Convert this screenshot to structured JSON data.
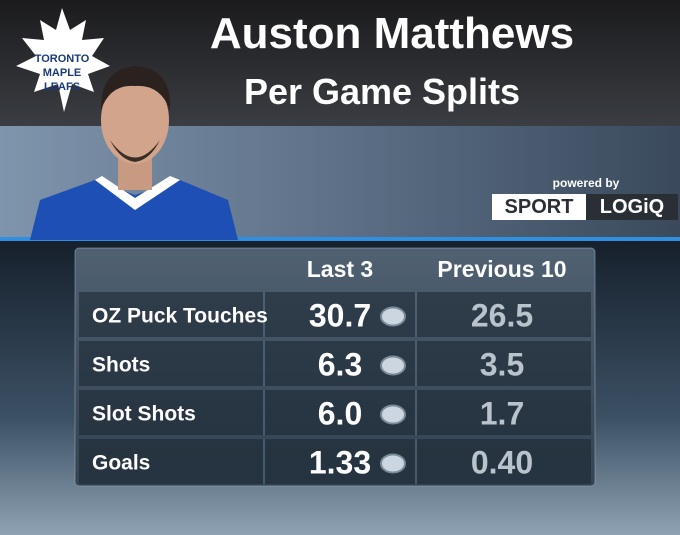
{
  "logo": {
    "lines": [
      "TORONTO",
      "MAPLE",
      "LEAFS"
    ]
  },
  "header": {
    "title": "Auston Matthews",
    "subtitle": "Per Game Splits"
  },
  "sponsor": {
    "caption": "powered by",
    "brand_left": "SPORT",
    "brand_right": "LOGiQ"
  },
  "table": {
    "columns": [
      "Last 3",
      "Previous 10"
    ],
    "rows": [
      [
        "OZ Puck Touches",
        "30.7",
        "26.5"
      ],
      [
        "Shots",
        "6.3",
        "3.5"
      ],
      [
        "Slot Shots",
        "6.0",
        "1.7"
      ],
      [
        "Goals",
        "1.33",
        "0.40"
      ]
    ]
  }
}
